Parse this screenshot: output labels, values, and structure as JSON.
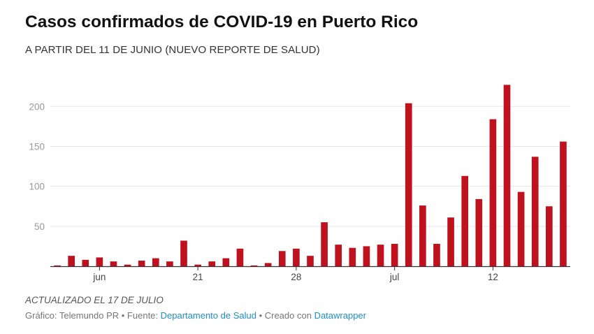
{
  "chart_data": {
    "type": "bar",
    "title": "Casos confirmados de COVID-19 en Puerto Rico",
    "subtitle": "A PARTIR DEL 11 DE JUNIO (NUEVO REPORTE DE SALUD)",
    "categories": [
      "2020-06-11",
      "2020-06-12",
      "2020-06-13",
      "2020-06-14",
      "2020-06-15",
      "2020-06-16",
      "2020-06-17",
      "2020-06-18",
      "2020-06-19",
      "2020-06-20",
      "2020-06-21",
      "2020-06-22",
      "2020-06-23",
      "2020-06-24",
      "2020-06-25",
      "2020-06-26",
      "2020-06-27",
      "2020-06-28",
      "2020-06-29",
      "2020-06-30",
      "2020-07-01",
      "2020-07-02",
      "2020-07-03",
      "2020-07-04",
      "2020-07-05",
      "2020-07-06",
      "2020-07-07",
      "2020-07-08",
      "2020-07-09",
      "2020-07-10",
      "2020-07-11",
      "2020-07-12",
      "2020-07-13",
      "2020-07-14",
      "2020-07-15",
      "2020-07-16",
      "2020-07-17"
    ],
    "values": [
      1,
      13,
      8,
      11,
      6,
      2,
      7,
      10,
      6,
      32,
      2,
      6,
      10,
      22,
      1,
      4,
      19,
      22,
      13,
      55,
      27,
      23,
      25,
      27,
      28,
      204,
      76,
      28,
      61,
      113,
      84,
      184,
      227,
      93,
      137,
      75,
      156
    ],
    "ylim": [
      0,
      230
    ],
    "yticks": [
      50,
      100,
      150,
      200
    ],
    "xticks": [
      {
        "at": "2020-06-14",
        "label": "jun"
      },
      {
        "at": "2020-06-21",
        "label": "21"
      },
      {
        "at": "2020-06-28",
        "label": "28"
      },
      {
        "at": "2020-07-05",
        "label": "jul"
      },
      {
        "at": "2020-07-12",
        "label": "12"
      }
    ],
    "xlabel": "",
    "ylabel": "",
    "grid": true,
    "bar_color": "#c0111f"
  },
  "footer": {
    "note": "ACTUALIZADO EL 17 DE JULIO",
    "credit_prefix": "Gráfico: Telemundo PR • Fuente: ",
    "source_link": "Departamento de Salud",
    "credit_middle": " • Creado con ",
    "tool_link": "Datawrapper"
  }
}
